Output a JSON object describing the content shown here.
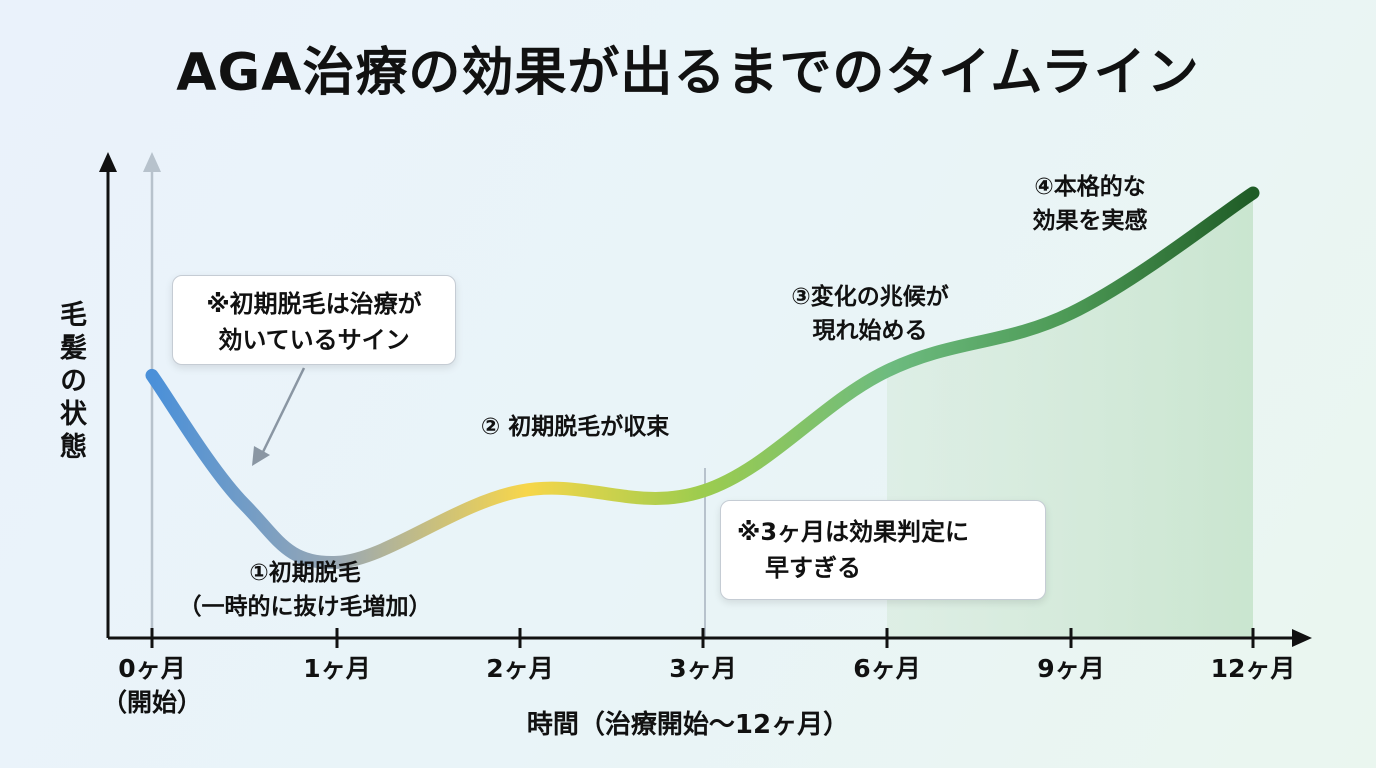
{
  "title": "AGA治療の効果が出るまでのタイムライン",
  "colors": {
    "blue": "#4a90d9",
    "gray": "#9aa8b3",
    "yellow": "#f7d64a",
    "lightgreen": "#9ccc4e",
    "midgreen": "#6dbb7f",
    "green": "#4d9a56",
    "darkgreen": "#1f5c26"
  },
  "chart_data": {
    "type": "line",
    "ylabel": "毛髪の状態",
    "xlabel": "時間（治療開始〜12ヶ月）",
    "x_ticks": [
      {
        "line1": "0ヶ月",
        "line2": "（開始）"
      },
      {
        "line1": "1ヶ月",
        "line2": ""
      },
      {
        "line1": "2ヶ月",
        "line2": ""
      },
      {
        "line1": "3ヶ月",
        "line2": ""
      },
      {
        "line1": "6ヶ月",
        "line2": ""
      },
      {
        "line1": "9ヶ月",
        "line2": ""
      },
      {
        "line1": "12ヶ月",
        "line2": ""
      }
    ],
    "series": [
      {
        "points": [
          {
            "t": 0,
            "y": 0.59
          },
          {
            "t": 0.5,
            "y": 0.3
          },
          {
            "t": 1,
            "y": 0.17
          },
          {
            "t": 2,
            "y": 0.33
          },
          {
            "t": 3,
            "y": 0.33
          },
          {
            "t": 6,
            "y": 0.6
          },
          {
            "t": 9,
            "y": 0.73
          },
          {
            "t": 12,
            "y": 1.0
          }
        ]
      }
    ],
    "shaded_from": 6,
    "annotations": [
      {
        "line1": "①初期脱毛",
        "line2": "（一時的に抜け毛増加）"
      },
      {
        "line1": "② 初期脱毛が収束",
        "line2": ""
      },
      {
        "line1": "③変化の兆候が",
        "line2": "現れ始める"
      },
      {
        "line1": "④本格的な",
        "line2": "効果を実感"
      }
    ],
    "callouts": [
      {
        "line1": "※初期脱毛は治療が",
        "line2": "効いているサイン"
      },
      {
        "line1": "※3ヶ月は効果判定に",
        "line2": "早すぎる"
      }
    ]
  }
}
